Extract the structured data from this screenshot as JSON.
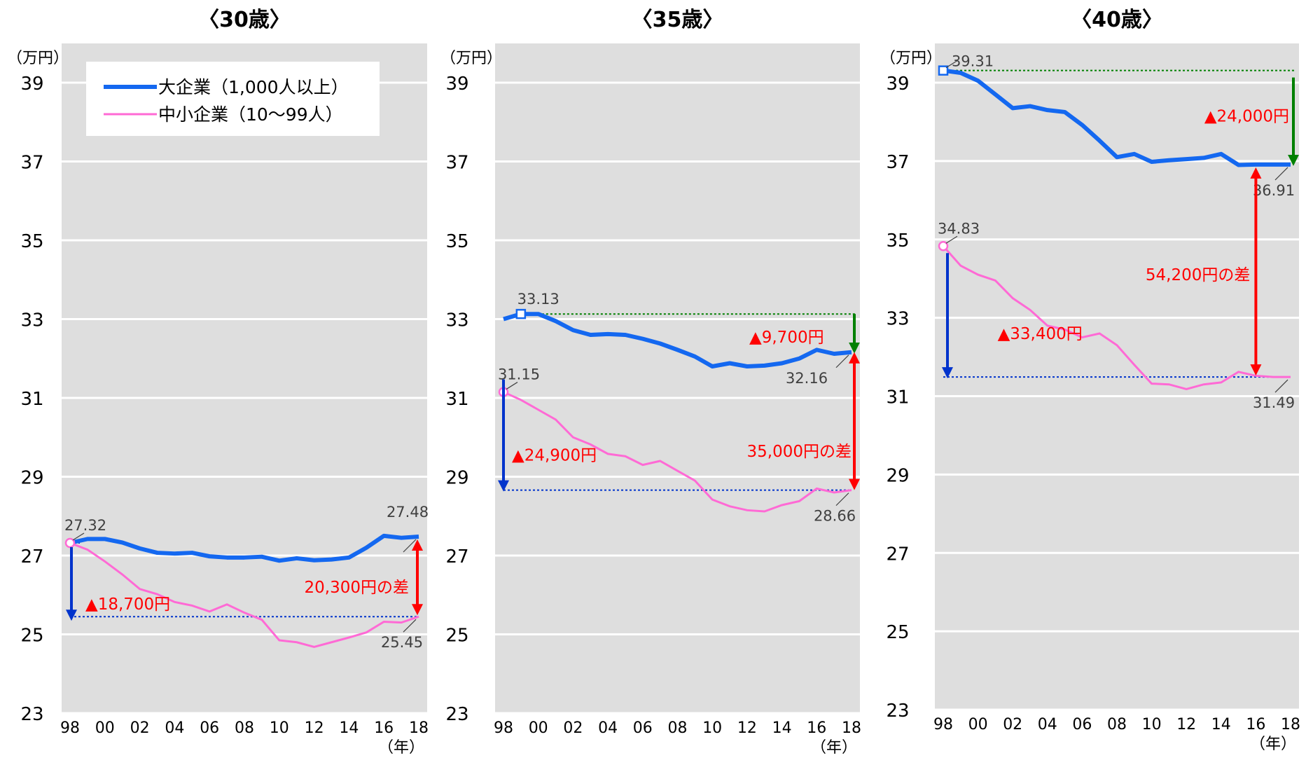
{
  "legend": {
    "large": "大企業（1,000人以上）",
    "small": "中小企業（10～99人）"
  },
  "y_unit": "（万円）",
  "x_unit": "（年）",
  "colors": {
    "large": "#1468f0",
    "small": "#ff6ad5",
    "red": "#ff0000",
    "green": "#008000",
    "blue": "#0033cc",
    "plot_bg": "#dedede",
    "label": "#404040"
  },
  "chart_data": [
    {
      "type": "line",
      "title": "〈30歳〉",
      "x": [
        1998,
        1999,
        2000,
        2001,
        2002,
        2003,
        2004,
        2005,
        2006,
        2007,
        2008,
        2009,
        2010,
        2011,
        2012,
        2013,
        2014,
        2015,
        2016,
        2017,
        2018
      ],
      "xticks": [
        1998,
        2000,
        2002,
        2004,
        2006,
        2008,
        2010,
        2012,
        2014,
        2016,
        2018
      ],
      "xtick_labels": [
        "98",
        "00",
        "02",
        "04",
        "06",
        "08",
        "10",
        "12",
        "14",
        "16",
        "18"
      ],
      "ylim": [
        23,
        39
      ],
      "yticks": [
        23,
        25,
        27,
        29,
        31,
        33,
        35,
        37,
        39
      ],
      "series": [
        {
          "name": "大企業（1,000人以上）",
          "values": [
            27.32,
            27.42,
            27.42,
            27.33,
            27.18,
            27.07,
            27.05,
            27.07,
            26.98,
            26.95,
            26.95,
            26.97,
            26.87,
            26.93,
            26.88,
            26.9,
            26.95,
            27.2,
            27.5,
            27.45,
            27.48
          ]
        },
        {
          "name": "中小企業（10～99人）",
          "values": [
            27.32,
            27.15,
            26.85,
            26.52,
            26.15,
            26.02,
            25.82,
            25.73,
            25.58,
            25.76,
            25.55,
            25.37,
            24.85,
            24.8,
            24.68,
            24.8,
            24.92,
            25.05,
            25.32,
            25.3,
            25.45
          ]
        }
      ],
      "value_labels": [
        {
          "text": "27.32",
          "x": 1998,
          "y": 27.32
        },
        {
          "text": "27.48",
          "x": 2018,
          "y": 27.48
        },
        {
          "text": "25.45",
          "x": 2018,
          "y": 25.45
        }
      ],
      "annotations": [
        {
          "text": "▲18,700円",
          "kind": "decline"
        },
        {
          "text": "20,300円の差",
          "kind": "gap"
        }
      ]
    },
    {
      "type": "line",
      "title": "〈35歳〉",
      "x": [
        1998,
        1999,
        2000,
        2001,
        2002,
        2003,
        2004,
        2005,
        2006,
        2007,
        2008,
        2009,
        2010,
        2011,
        2012,
        2013,
        2014,
        2015,
        2016,
        2017,
        2018
      ],
      "xticks": [
        1998,
        2000,
        2002,
        2004,
        2006,
        2008,
        2010,
        2012,
        2014,
        2016,
        2018
      ],
      "xtick_labels": [
        "98",
        "00",
        "02",
        "04",
        "06",
        "08",
        "10",
        "12",
        "14",
        "16",
        "18"
      ],
      "ylim": [
        23,
        39
      ],
      "yticks": [
        23,
        25,
        27,
        29,
        31,
        33,
        35,
        37,
        39
      ],
      "series": [
        {
          "name": "大企業（1,000人以上）",
          "values": [
            33.0,
            33.13,
            33.13,
            32.95,
            32.72,
            32.6,
            32.62,
            32.6,
            32.5,
            32.38,
            32.22,
            32.05,
            31.8,
            31.88,
            31.8,
            31.82,
            31.88,
            32.0,
            32.22,
            32.12,
            32.16
          ]
        },
        {
          "name": "中小企業（10～99人）",
          "values": [
            31.15,
            30.95,
            30.7,
            30.45,
            30.0,
            29.82,
            29.58,
            29.52,
            29.3,
            29.4,
            29.15,
            28.9,
            28.42,
            28.25,
            28.15,
            28.12,
            28.28,
            28.38,
            28.7,
            28.6,
            28.66
          ]
        }
      ],
      "value_labels": [
        {
          "text": "33.13",
          "x": 2000,
          "y": 33.13
        },
        {
          "text": "31.15",
          "x": 1998,
          "y": 31.15
        },
        {
          "text": "32.16",
          "x": 2018,
          "y": 32.16
        },
        {
          "text": "28.66",
          "x": 2018,
          "y": 28.66
        }
      ],
      "annotations": [
        {
          "text": "▲9,700円",
          "kind": "decline"
        },
        {
          "text": "▲24,900円",
          "kind": "decline"
        },
        {
          "text": "35,000円の差",
          "kind": "gap"
        }
      ]
    },
    {
      "type": "line",
      "title": "〈40歳〉",
      "x": [
        1998,
        1999,
        2000,
        2001,
        2002,
        2003,
        2004,
        2005,
        2006,
        2007,
        2008,
        2009,
        2010,
        2011,
        2012,
        2013,
        2014,
        2015,
        2016,
        2017,
        2018
      ],
      "xticks": [
        1998,
        2000,
        2002,
        2004,
        2006,
        2008,
        2010,
        2012,
        2014,
        2016,
        2018
      ],
      "xtick_labels": [
        "98",
        "00",
        "02",
        "04",
        "06",
        "08",
        "10",
        "12",
        "14",
        "16",
        "18"
      ],
      "ylim": [
        23,
        39
      ],
      "yticks": [
        23,
        25,
        27,
        29,
        31,
        33,
        35,
        37,
        39
      ],
      "series": [
        {
          "name": "大企業（1,000人以上）",
          "values": [
            39.31,
            39.25,
            39.05,
            38.7,
            38.35,
            38.4,
            38.3,
            38.25,
            37.92,
            37.52,
            37.1,
            37.18,
            36.98,
            37.02,
            37.05,
            37.08,
            37.18,
            36.9,
            36.91,
            36.91,
            36.91
          ]
        },
        {
          "name": "中小企業（10～99人）",
          "values": [
            34.83,
            34.33,
            34.1,
            33.95,
            33.5,
            33.2,
            32.8,
            32.7,
            32.5,
            32.6,
            32.3,
            31.8,
            31.32,
            31.3,
            31.18,
            31.3,
            31.35,
            31.62,
            31.52,
            31.49,
            31.49
          ]
        }
      ],
      "value_labels": [
        {
          "text": "39.31",
          "x": 1998,
          "y": 39.31
        },
        {
          "text": "34.83",
          "x": 1998,
          "y": 34.83
        },
        {
          "text": "36.91",
          "x": 2018,
          "y": 36.91
        },
        {
          "text": "31.49",
          "x": 2018,
          "y": 31.49
        }
      ],
      "annotations": [
        {
          "text": "▲24,000円",
          "kind": "decline"
        },
        {
          "text": "54,200円の差",
          "kind": "gap"
        },
        {
          "text": "▲33,400円",
          "kind": "decline"
        }
      ]
    }
  ]
}
